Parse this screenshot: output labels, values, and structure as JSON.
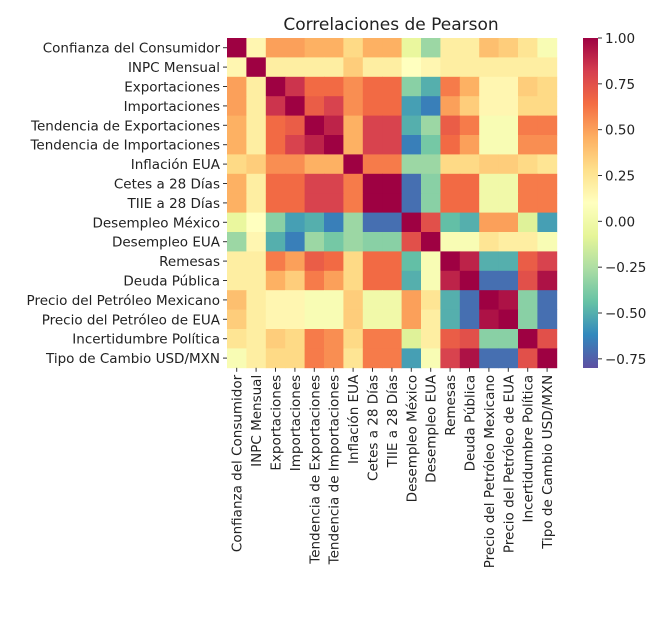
{
  "chart_data": {
    "type": "heatmap",
    "title": "Correlaciones de Pearson",
    "xlabel": "",
    "ylabel": "",
    "labels": [
      "Confianza del Consumidor",
      "INPC Mensual",
      "Exportaciones",
      "Importaciones",
      "Tendencia de Exportaciones",
      "Tendencia de Importaciones",
      "Inflación EUA",
      "Cetes a 28 Días",
      "TIIE a 28 Días",
      "Desempleo México",
      "Desempleo EUA",
      "Remesas",
      "Deuda Pública",
      "Precio del Petróleo Mexicano",
      "Precio del Petróleo de EUA",
      "Incertidumbre Política",
      "Tipo de Cambio USD/MXN"
    ],
    "matrix": [
      [
        1.0,
        0.15,
        0.5,
        0.5,
        0.45,
        0.45,
        0.3,
        0.45,
        0.45,
        -0.05,
        -0.3,
        0.2,
        0.2,
        0.4,
        0.35,
        0.25,
        0.05
      ],
      [
        0.15,
        1.0,
        0.2,
        0.2,
        0.2,
        0.2,
        0.35,
        0.2,
        0.2,
        0.1,
        0.15,
        0.2,
        0.2,
        0.2,
        0.2,
        0.2,
        0.2
      ],
      [
        0.5,
        0.2,
        1.0,
        0.85,
        0.65,
        0.65,
        0.55,
        0.65,
        0.65,
        -0.35,
        -0.5,
        0.6,
        0.45,
        0.15,
        0.15,
        0.35,
        0.3
      ],
      [
        0.5,
        0.2,
        0.85,
        1.0,
        0.7,
        0.8,
        0.55,
        0.65,
        0.65,
        -0.55,
        -0.65,
        0.5,
        0.35,
        0.15,
        0.15,
        0.3,
        0.3
      ],
      [
        0.45,
        0.2,
        0.65,
        0.7,
        1.0,
        0.9,
        0.45,
        0.8,
        0.8,
        -0.5,
        -0.3,
        0.7,
        0.6,
        0.05,
        0.05,
        0.6,
        0.6
      ],
      [
        0.45,
        0.2,
        0.65,
        0.8,
        0.9,
        1.0,
        0.45,
        0.8,
        0.8,
        -0.65,
        -0.4,
        0.65,
        0.5,
        0.05,
        0.05,
        0.55,
        0.55
      ],
      [
        0.3,
        0.35,
        0.55,
        0.55,
        0.45,
        0.45,
        1.0,
        0.6,
        0.6,
        -0.3,
        -0.3,
        0.3,
        0.3,
        0.35,
        0.35,
        0.3,
        0.25
      ],
      [
        0.45,
        0.2,
        0.65,
        0.65,
        0.8,
        0.8,
        0.6,
        1.0,
        1.0,
        -0.7,
        -0.35,
        0.65,
        0.65,
        0.0,
        0.0,
        0.6,
        0.6
      ],
      [
        0.45,
        0.2,
        0.65,
        0.65,
        0.8,
        0.8,
        0.6,
        1.0,
        1.0,
        -0.7,
        -0.35,
        0.65,
        0.65,
        0.0,
        0.0,
        0.6,
        0.6
      ],
      [
        -0.05,
        0.1,
        -0.35,
        -0.55,
        -0.5,
        -0.65,
        -0.3,
        -0.7,
        -0.7,
        1.0,
        0.75,
        -0.45,
        -0.5,
        0.5,
        0.5,
        -0.1,
        -0.55
      ],
      [
        -0.3,
        0.15,
        -0.5,
        -0.65,
        -0.3,
        -0.4,
        -0.3,
        -0.35,
        -0.35,
        0.75,
        1.0,
        0.05,
        0.05,
        0.25,
        0.2,
        0.2,
        0.05
      ],
      [
        0.2,
        0.2,
        0.6,
        0.5,
        0.7,
        0.65,
        0.3,
        0.65,
        0.65,
        -0.45,
        0.05,
        1.0,
        0.9,
        -0.5,
        -0.5,
        0.7,
        0.8
      ],
      [
        0.2,
        0.2,
        0.45,
        0.35,
        0.6,
        0.5,
        0.3,
        0.65,
        0.65,
        -0.5,
        0.05,
        0.9,
        1.0,
        -0.7,
        -0.7,
        0.75,
        0.95
      ],
      [
        0.4,
        0.2,
        0.15,
        0.15,
        0.05,
        0.05,
        0.35,
        0.0,
        0.0,
        0.5,
        0.25,
        -0.5,
        -0.7,
        1.0,
        0.95,
        -0.35,
        -0.7
      ],
      [
        0.35,
        0.2,
        0.15,
        0.15,
        0.05,
        0.05,
        0.35,
        0.0,
        0.0,
        0.5,
        0.2,
        -0.5,
        -0.7,
        0.95,
        1.0,
        -0.35,
        -0.7
      ],
      [
        0.25,
        0.2,
        0.35,
        0.3,
        0.6,
        0.55,
        0.3,
        0.6,
        0.6,
        -0.1,
        0.2,
        0.7,
        0.75,
        -0.35,
        -0.35,
        1.0,
        0.75
      ],
      [
        0.05,
        0.2,
        0.3,
        0.3,
        0.6,
        0.55,
        0.25,
        0.6,
        0.6,
        -0.55,
        0.05,
        0.8,
        0.95,
        -0.7,
        -0.7,
        0.75,
        1.0
      ]
    ],
    "colorbar": {
      "colormap": "Spectral_r",
      "vmin": -0.8,
      "vmax": 1.0,
      "ticks": [
        -0.75,
        -0.5,
        -0.25,
        0.0,
        0.25,
        0.5,
        0.75,
        1.0
      ],
      "tick_labels": [
        "−0.75",
        "−0.50",
        "−0.25",
        "0.00",
        "0.25",
        "0.50",
        "0.75",
        "1.00"
      ]
    }
  }
}
